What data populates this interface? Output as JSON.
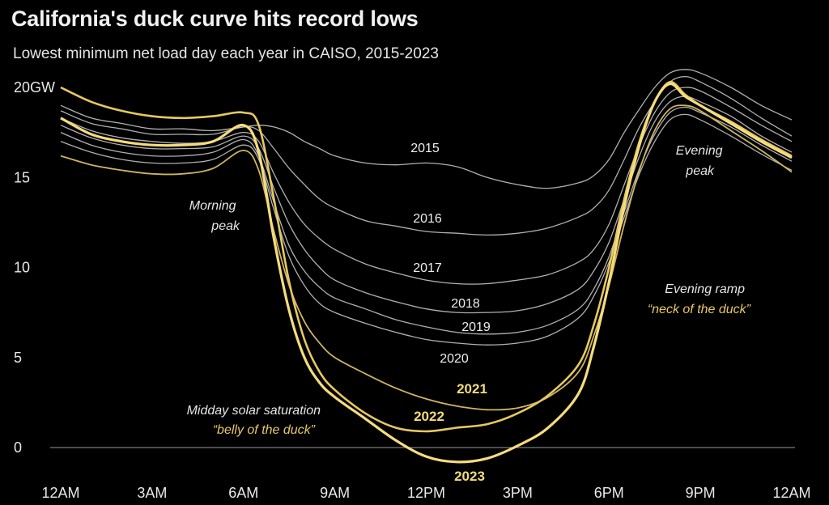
{
  "title": "California's duck curve hits record lows",
  "subtitle": "Lowest minimum net load day each year in CAISO, 2015-2023",
  "colors": {
    "background": "#000000",
    "white_line": "#d6d6d6",
    "gold_line": "#f3da7a",
    "gold_text": "#e9c766"
  },
  "chart_data": {
    "type": "line",
    "x": [
      0,
      1,
      2,
      3,
      4,
      5,
      6,
      6.5,
      7,
      7.5,
      8,
      8.5,
      9,
      10,
      11,
      12,
      13,
      14,
      15,
      16,
      17,
      17.5,
      18,
      18.5,
      19,
      19.5,
      20,
      20.5,
      21,
      22,
      23,
      24
    ],
    "x_tick_values": [
      0,
      3,
      6,
      9,
      12,
      15,
      18,
      21,
      24
    ],
    "x_tick_labels": [
      "12AM",
      "3AM",
      "6AM",
      "9AM",
      "12PM",
      "3PM",
      "6PM",
      "9PM",
      "12AM"
    ],
    "y_tick_values": [
      0,
      5,
      10,
      15,
      20
    ],
    "y_tick_labels": [
      "0",
      "5",
      "10",
      "15",
      "20GW"
    ],
    "xlim": [
      0,
      24
    ],
    "ylim": [
      -0.9,
      21
    ],
    "grid": false,
    "legend": "none",
    "series": [
      {
        "name": "2015",
        "values": [
          19.0,
          18.3,
          18.0,
          17.7,
          17.7,
          17.6,
          17.8,
          17.9,
          17.8,
          17.5,
          17.0,
          16.6,
          16.2,
          15.8,
          15.7,
          15.8,
          15.6,
          15.0,
          14.6,
          14.4,
          14.7,
          15.1,
          16.0,
          17.5,
          18.8,
          20.0,
          20.8,
          21.0,
          20.8,
          20.0,
          19.0,
          18.2
        ]
      },
      {
        "name": "2016",
        "values": [
          18.7,
          18.0,
          17.7,
          17.4,
          17.4,
          17.4,
          17.8,
          17.6,
          16.6,
          15.5,
          14.6,
          13.8,
          13.3,
          12.6,
          12.3,
          12.0,
          11.9,
          11.8,
          11.9,
          12.2,
          12.8,
          13.3,
          14.3,
          16.0,
          17.8,
          19.2,
          20.3,
          20.6,
          20.3,
          19.4,
          18.3,
          17.3
        ]
      },
      {
        "name": "2017",
        "values": [
          18.3,
          17.6,
          17.2,
          17.0,
          16.9,
          17.0,
          17.5,
          17.0,
          15.2,
          13.6,
          12.4,
          11.6,
          11.0,
          10.2,
          9.7,
          9.3,
          9.1,
          9.1,
          9.3,
          9.6,
          10.3,
          11.0,
          12.4,
          14.6,
          16.8,
          18.6,
          19.7,
          20.0,
          19.8,
          18.9,
          17.9,
          17.0
        ]
      },
      {
        "name": "2018",
        "values": [
          17.9,
          17.2,
          16.8,
          16.6,
          16.6,
          16.7,
          17.3,
          16.6,
          14.4,
          12.4,
          11.0,
          10.0,
          9.3,
          8.6,
          8.1,
          7.7,
          7.5,
          7.5,
          7.6,
          8.0,
          8.8,
          9.8,
          11.4,
          13.8,
          16.2,
          18.1,
          19.2,
          19.5,
          19.2,
          18.4,
          17.3,
          16.4
        ]
      },
      {
        "name": "2019",
        "values": [
          17.5,
          16.8,
          16.4,
          16.2,
          16.2,
          16.4,
          17.1,
          16.2,
          13.6,
          11.2,
          9.8,
          8.9,
          8.3,
          7.7,
          7.1,
          6.7,
          6.4,
          6.3,
          6.4,
          6.8,
          7.7,
          8.8,
          10.6,
          13.1,
          15.5,
          17.4,
          18.6,
          18.9,
          18.6,
          17.8,
          16.8,
          15.9
        ]
      },
      {
        "name": "2020",
        "values": [
          17.0,
          16.4,
          16.0,
          15.8,
          15.8,
          16.0,
          16.8,
          16.0,
          13.2,
          10.6,
          9.0,
          8.0,
          7.5,
          6.9,
          6.4,
          6.0,
          5.8,
          5.7,
          5.8,
          6.2,
          7.2,
          8.4,
          10.3,
          12.8,
          15.2,
          17.0,
          18.2,
          18.5,
          18.2,
          17.3,
          16.3,
          15.4
        ]
      },
      {
        "name": "2021",
        "values": [
          16.2,
          15.7,
          15.4,
          15.2,
          15.2,
          15.5,
          16.5,
          15.4,
          12.0,
          9.0,
          7.0,
          5.8,
          5.0,
          4.1,
          3.3,
          2.7,
          2.3,
          2.1,
          2.2,
          2.8,
          4.2,
          6.2,
          9.0,
          12.4,
          15.4,
          17.6,
          18.8,
          19.0,
          18.7,
          17.6,
          16.5,
          15.3
        ]
      },
      {
        "name": "2022",
        "values": [
          20.0,
          19.2,
          18.7,
          18.4,
          18.3,
          18.4,
          18.6,
          17.9,
          13.8,
          9.2,
          6.0,
          4.2,
          3.2,
          1.9,
          1.1,
          0.9,
          1.1,
          1.3,
          1.9,
          2.9,
          4.6,
          6.8,
          10.0,
          13.8,
          17.0,
          19.2,
          20.3,
          19.6,
          19.0,
          18.1,
          17.1,
          16.2
        ]
      },
      {
        "name": "2023",
        "values": [
          18.3,
          17.4,
          17.0,
          16.8,
          16.8,
          17.0,
          17.9,
          16.4,
          11.6,
          7.6,
          5.0,
          3.6,
          2.8,
          1.6,
          0.4,
          -0.5,
          -0.8,
          -0.6,
          0.1,
          1.1,
          3.0,
          5.6,
          9.2,
          13.4,
          16.8,
          19.2,
          20.2,
          19.5,
          19.0,
          18.0,
          17.0,
          16.1
        ]
      }
    ],
    "annotations": {
      "morning_peak": "Morning\npeak",
      "evening_peak": "Evening\npeak",
      "evening_ramp": "Evening ramp",
      "neck": "“neck of the duck”",
      "midday": "Midday solar saturation",
      "belly": "“belly of the duck”"
    }
  }
}
